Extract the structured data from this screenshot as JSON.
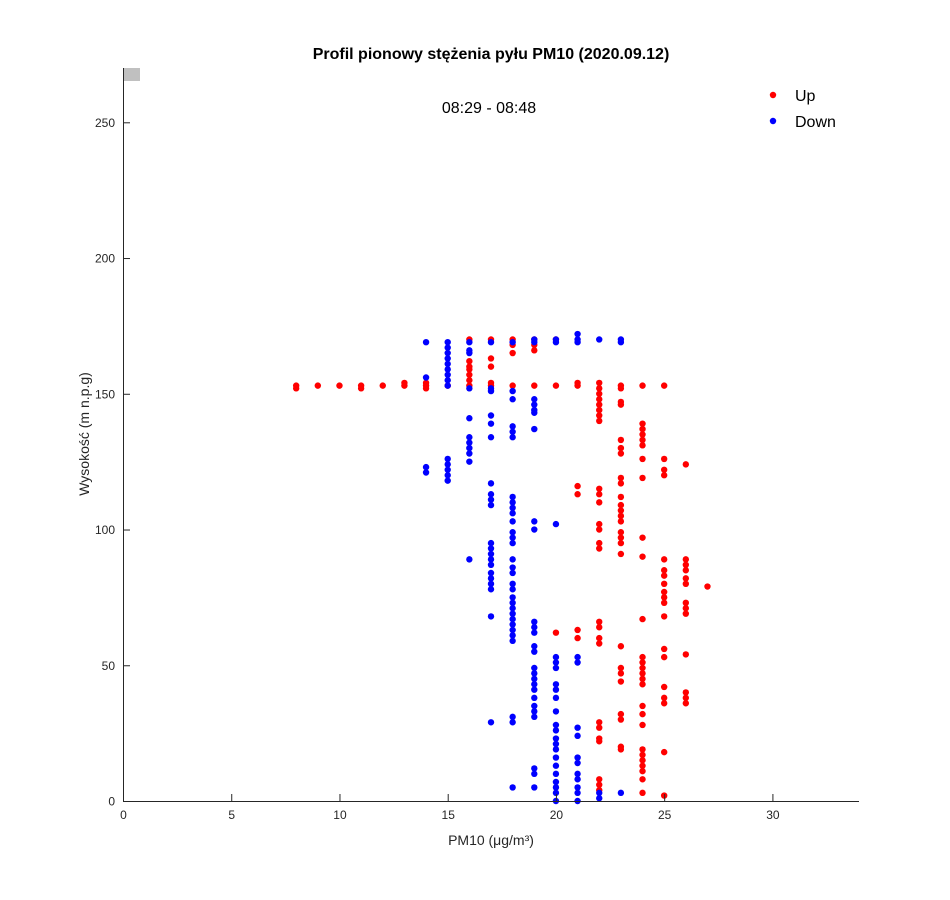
{
  "chart_data": {
    "type": "scatter",
    "title": "Profil pionowy stężenia pyłu PM10 (2020.09.12)",
    "subtitle": "08:29 - 08:48",
    "xlabel": "PM10 (μg/m³)",
    "xlabel_parts": {
      "main": "PM10 (",
      "mu": "μ",
      "unit": "g/m",
      "sup": "3",
      "close": ")"
    },
    "ylabel": "Wysokość (m n.p.g)",
    "xlim": [
      0,
      34
    ],
    "ylim": [
      0,
      270
    ],
    "xticks": [
      "0",
      "5",
      "10",
      "15",
      "20",
      "25",
      "30"
    ],
    "yticks": [
      "0",
      "50",
      "100",
      "150",
      "200",
      "250"
    ],
    "grid": false,
    "legend_position": "top-right",
    "series": [
      {
        "name": "Up",
        "color": "#ff0000",
        "columns": [
          {
            "x": 8,
            "y": [
              152,
              153
            ]
          },
          {
            "x": 9,
            "y": [
              153
            ]
          },
          {
            "x": 10,
            "y": [
              153
            ]
          },
          {
            "x": 11,
            "y": [
              152,
              153
            ]
          },
          {
            "x": 12,
            "y": [
              153
            ]
          },
          {
            "x": 13,
            "y": [
              153,
              154
            ]
          },
          {
            "x": 14,
            "y": [
              152,
              153,
              154
            ]
          },
          {
            "x": 15,
            "y": [
              153
            ]
          },
          {
            "x": 16,
            "y": [
              170,
              162,
              160,
              159,
              157,
              155,
              153
            ]
          },
          {
            "x": 17,
            "y": [
              170,
              163,
              160,
              154,
              153
            ]
          },
          {
            "x": 18,
            "y": [
              170,
              168,
              165,
              153
            ]
          },
          {
            "x": 19,
            "y": [
              170,
              168,
              166,
              153
            ]
          },
          {
            "x": 20,
            "y": [
              170,
              153,
              62
            ]
          },
          {
            "x": 21,
            "y": [
              154,
              153,
              116,
              113,
              63,
              60
            ]
          },
          {
            "x": 22,
            "y": [
              154,
              152,
              150,
              148,
              146,
              144,
              142,
              140,
              115,
              113,
              110,
              102,
              100,
              95,
              93,
              66,
              64,
              60,
              58,
              29,
              27,
              23,
              22,
              8,
              6,
              4
            ]
          },
          {
            "x": 23,
            "y": [
              153,
              152,
              147,
              146,
              133,
              130,
              128,
              119,
              117,
              112,
              109,
              107,
              105,
              103,
              99,
              97,
              95,
              91,
              57,
              49,
              47,
              44,
              32,
              30,
              20,
              19
            ]
          },
          {
            "x": 24,
            "y": [
              153,
              139,
              137,
              135,
              133,
              131,
              126,
              119,
              97,
              90,
              67,
              53,
              51,
              49,
              47,
              45,
              43,
              35,
              32,
              28,
              19,
              17,
              15,
              13,
              11,
              8,
              3
            ]
          },
          {
            "x": 25,
            "y": [
              153,
              126,
              122,
              120,
              89,
              85,
              83,
              80,
              77,
              75,
              73,
              68,
              56,
              53,
              42,
              38,
              36,
              18,
              2
            ]
          },
          {
            "x": 26,
            "y": [
              124,
              89,
              87,
              85,
              82,
              80,
              73,
              71,
              69,
              54,
              40,
              38,
              36
            ]
          },
          {
            "x": 27,
            "y": [
              79
            ]
          }
        ]
      },
      {
        "name": "Down",
        "color": "#0000ff",
        "columns": [
          {
            "x": 14,
            "y": [
              169,
              156,
              123,
              121
            ]
          },
          {
            "x": 15,
            "y": [
              169,
              167,
              165,
              163,
              161,
              159,
              157,
              155,
              153,
              126,
              124,
              122,
              120,
              118
            ]
          },
          {
            "x": 16,
            "y": [
              169,
              166,
              165,
              152,
              141,
              134,
              132,
              130,
              128,
              125,
              89
            ]
          },
          {
            "x": 17,
            "y": [
              169,
              152,
              151,
              142,
              139,
              134,
              117,
              113,
              111,
              109,
              95,
              93,
              91,
              89,
              87,
              84,
              82,
              80,
              78,
              68,
              29
            ]
          },
          {
            "x": 18,
            "y": [
              169,
              151,
              148,
              138,
              136,
              134,
              112,
              110,
              108,
              106,
              103,
              99,
              97,
              95,
              89,
              86,
              84,
              80,
              78,
              75,
              73,
              71,
              69,
              67,
              65,
              63,
              61,
              59,
              31,
              29,
              5
            ]
          },
          {
            "x": 19,
            "y": [
              170,
              169,
              148,
              146,
              144,
              143,
              137,
              103,
              100,
              66,
              64,
              62,
              57,
              55,
              49,
              47,
              45,
              43,
              41,
              38,
              35,
              33,
              31,
              12,
              10,
              5
            ]
          },
          {
            "x": 20,
            "y": [
              170,
              169,
              102,
              53,
              51,
              49,
              43,
              41,
              38,
              33,
              28,
              26,
              23,
              21,
              19,
              16,
              13,
              10,
              7,
              5,
              3,
              0
            ]
          },
          {
            "x": 21,
            "y": [
              172,
              170,
              169,
              53,
              51,
              27,
              24,
              16,
              14,
              10,
              8,
              5,
              3,
              0
            ]
          },
          {
            "x": 22,
            "y": [
              170,
              3,
              1
            ]
          },
          {
            "x": 23,
            "y": [
              170,
              169,
              3
            ]
          }
        ]
      }
    ]
  }
}
